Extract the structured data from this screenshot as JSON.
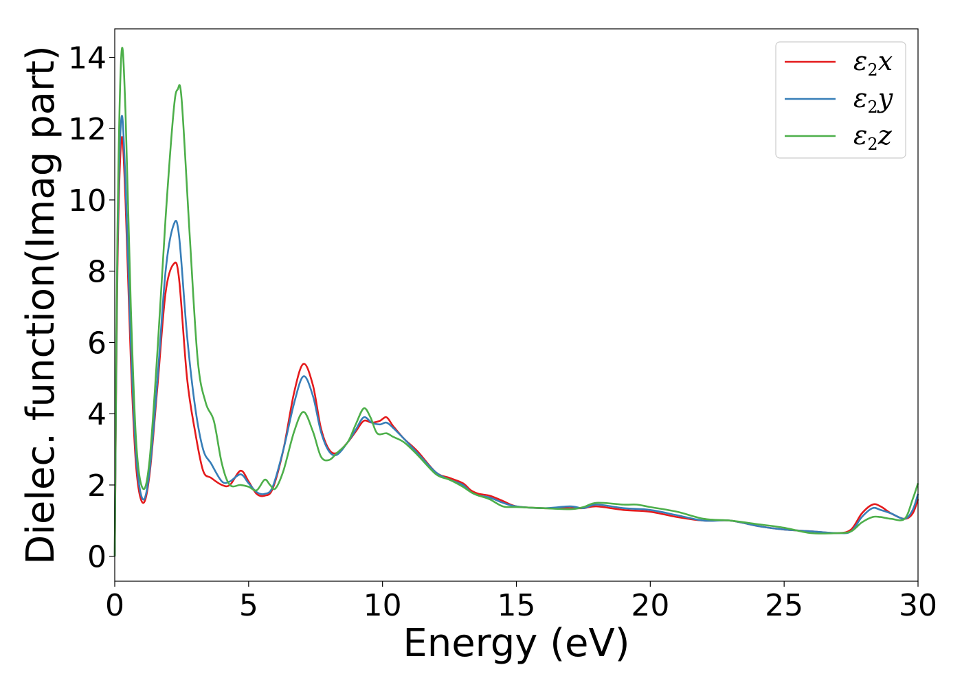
{
  "chart_data": {
    "type": "line",
    "xlabel": "Energy (eV)",
    "ylabel": "Dielec. function(Imag part)",
    "xlim": [
      0,
      30
    ],
    "ylim": [
      -0.7,
      14.8
    ],
    "xticks": [
      "0",
      "5",
      "10",
      "15",
      "20",
      "25",
      "30"
    ],
    "yticks": [
      "0",
      "2",
      "4",
      "6",
      "8",
      "10",
      "12",
      "14"
    ],
    "grid": false,
    "legend_position": "top-right",
    "series": [
      {
        "name": "ε2x",
        "legend_base": "ε",
        "legend_sub": "2",
        "legend_var": "x",
        "color": "#e41a1c",
        "points": [
          [
            0,
            0
          ],
          [
            0.1,
            8.0
          ],
          [
            0.25,
            11.7
          ],
          [
            0.4,
            10.0
          ],
          [
            0.6,
            5.5
          ],
          [
            0.8,
            2.5
          ],
          [
            1.05,
            1.5
          ],
          [
            1.3,
            2.3
          ],
          [
            1.6,
            4.8
          ],
          [
            1.9,
            7.4
          ],
          [
            2.2,
            8.2
          ],
          [
            2.4,
            7.8
          ],
          [
            2.7,
            5.0
          ],
          [
            3.0,
            3.5
          ],
          [
            3.3,
            2.4
          ],
          [
            3.6,
            2.2
          ],
          [
            4.0,
            2.0
          ],
          [
            4.3,
            2.0
          ],
          [
            4.7,
            2.4
          ],
          [
            5.0,
            2.1
          ],
          [
            5.3,
            1.75
          ],
          [
            5.6,
            1.7
          ],
          [
            5.9,
            1.9
          ],
          [
            6.3,
            3.0
          ],
          [
            6.7,
            4.6
          ],
          [
            7.05,
            5.4
          ],
          [
            7.4,
            4.8
          ],
          [
            7.7,
            3.6
          ],
          [
            8.0,
            3.0
          ],
          [
            8.3,
            2.9
          ],
          [
            8.7,
            3.2
          ],
          [
            9.0,
            3.5
          ],
          [
            9.3,
            3.8
          ],
          [
            9.6,
            3.75
          ],
          [
            9.9,
            3.8
          ],
          [
            10.15,
            3.9
          ],
          [
            10.4,
            3.65
          ],
          [
            10.8,
            3.3
          ],
          [
            11.3,
            2.95
          ],
          [
            12.0,
            2.35
          ],
          [
            12.5,
            2.2
          ],
          [
            13.0,
            2.05
          ],
          [
            13.3,
            1.85
          ],
          [
            13.6,
            1.75
          ],
          [
            14.0,
            1.7
          ],
          [
            14.5,
            1.55
          ],
          [
            15.0,
            1.4
          ],
          [
            16.0,
            1.35
          ],
          [
            17.0,
            1.35
          ],
          [
            17.5,
            1.35
          ],
          [
            18.0,
            1.4
          ],
          [
            19.0,
            1.3
          ],
          [
            20.0,
            1.25
          ],
          [
            21.0,
            1.1
          ],
          [
            22.0,
            1.0
          ],
          [
            23.0,
            1.0
          ],
          [
            24.0,
            0.85
          ],
          [
            25.0,
            0.75
          ],
          [
            26.0,
            0.7
          ],
          [
            27.0,
            0.65
          ],
          [
            27.5,
            0.75
          ],
          [
            27.9,
            1.2
          ],
          [
            28.3,
            1.45
          ],
          [
            28.6,
            1.4
          ],
          [
            29.0,
            1.2
          ],
          [
            29.5,
            1.05
          ],
          [
            29.8,
            1.2
          ],
          [
            30.0,
            1.6
          ]
        ]
      },
      {
        "name": "ε2y",
        "legend_base": "ε",
        "legend_sub": "2",
        "legend_var": "y",
        "color": "#377eb8",
        "points": [
          [
            0,
            0
          ],
          [
            0.1,
            8.5
          ],
          [
            0.25,
            12.3
          ],
          [
            0.4,
            10.5
          ],
          [
            0.6,
            6.0
          ],
          [
            0.8,
            2.8
          ],
          [
            1.05,
            1.6
          ],
          [
            1.3,
            2.4
          ],
          [
            1.6,
            5.0
          ],
          [
            1.9,
            8.0
          ],
          [
            2.2,
            9.3
          ],
          [
            2.4,
            9.0
          ],
          [
            2.7,
            6.2
          ],
          [
            3.0,
            4.2
          ],
          [
            3.3,
            3.0
          ],
          [
            3.6,
            2.6
          ],
          [
            4.0,
            2.1
          ],
          [
            4.3,
            2.1
          ],
          [
            4.7,
            2.3
          ],
          [
            5.0,
            2.05
          ],
          [
            5.3,
            1.8
          ],
          [
            5.6,
            1.75
          ],
          [
            5.9,
            1.95
          ],
          [
            6.3,
            3.0
          ],
          [
            6.7,
            4.3
          ],
          [
            7.05,
            5.05
          ],
          [
            7.4,
            4.5
          ],
          [
            7.7,
            3.5
          ],
          [
            8.0,
            2.95
          ],
          [
            8.3,
            2.85
          ],
          [
            8.7,
            3.2
          ],
          [
            9.0,
            3.55
          ],
          [
            9.3,
            3.9
          ],
          [
            9.6,
            3.75
          ],
          [
            9.9,
            3.7
          ],
          [
            10.15,
            3.75
          ],
          [
            10.4,
            3.6
          ],
          [
            10.8,
            3.3
          ],
          [
            11.3,
            2.9
          ],
          [
            12.0,
            2.35
          ],
          [
            12.5,
            2.15
          ],
          [
            13.0,
            2.0
          ],
          [
            13.3,
            1.8
          ],
          [
            13.6,
            1.7
          ],
          [
            14.0,
            1.65
          ],
          [
            14.5,
            1.5
          ],
          [
            15.0,
            1.4
          ],
          [
            16.0,
            1.35
          ],
          [
            17.0,
            1.4
          ],
          [
            17.5,
            1.35
          ],
          [
            18.0,
            1.45
          ],
          [
            19.0,
            1.35
          ],
          [
            20.0,
            1.3
          ],
          [
            21.0,
            1.15
          ],
          [
            22.0,
            1.0
          ],
          [
            23.0,
            1.0
          ],
          [
            24.0,
            0.85
          ],
          [
            25.0,
            0.75
          ],
          [
            26.0,
            0.7
          ],
          [
            27.0,
            0.65
          ],
          [
            27.5,
            0.7
          ],
          [
            27.9,
            1.1
          ],
          [
            28.3,
            1.35
          ],
          [
            28.6,
            1.3
          ],
          [
            29.0,
            1.2
          ],
          [
            29.5,
            1.05
          ],
          [
            29.8,
            1.3
          ],
          [
            30.0,
            1.75
          ]
        ]
      },
      {
        "name": "ε2z",
        "legend_base": "ε",
        "legend_sub": "2",
        "legend_var": "z",
        "color": "#4daf4a",
        "points": [
          [
            0,
            0
          ],
          [
            0.1,
            9.0
          ],
          [
            0.25,
            14.1
          ],
          [
            0.4,
            12.5
          ],
          [
            0.6,
            7.0
          ],
          [
            0.8,
            3.2
          ],
          [
            1.05,
            1.9
          ],
          [
            1.3,
            2.7
          ],
          [
            1.6,
            5.8
          ],
          [
            1.9,
            9.5
          ],
          [
            2.2,
            12.5
          ],
          [
            2.35,
            13.1
          ],
          [
            2.5,
            12.8
          ],
          [
            2.8,
            9.0
          ],
          [
            3.1,
            5.5
          ],
          [
            3.4,
            4.3
          ],
          [
            3.7,
            3.8
          ],
          [
            4.0,
            2.6
          ],
          [
            4.3,
            2.0
          ],
          [
            4.7,
            2.0
          ],
          [
            5.0,
            1.95
          ],
          [
            5.3,
            1.85
          ],
          [
            5.6,
            2.15
          ],
          [
            5.8,
            2.0
          ],
          [
            6.0,
            1.9
          ],
          [
            6.3,
            2.4
          ],
          [
            6.7,
            3.5
          ],
          [
            7.05,
            4.05
          ],
          [
            7.4,
            3.5
          ],
          [
            7.7,
            2.8
          ],
          [
            8.0,
            2.7
          ],
          [
            8.3,
            2.9
          ],
          [
            8.7,
            3.2
          ],
          [
            9.0,
            3.7
          ],
          [
            9.3,
            4.15
          ],
          [
            9.55,
            3.9
          ],
          [
            9.8,
            3.45
          ],
          [
            10.15,
            3.45
          ],
          [
            10.4,
            3.35
          ],
          [
            10.8,
            3.2
          ],
          [
            11.3,
            2.85
          ],
          [
            12.0,
            2.3
          ],
          [
            12.5,
            2.15
          ],
          [
            13.0,
            1.95
          ],
          [
            13.3,
            1.8
          ],
          [
            13.6,
            1.7
          ],
          [
            14.0,
            1.6
          ],
          [
            14.5,
            1.4
          ],
          [
            15.0,
            1.38
          ],
          [
            16.0,
            1.35
          ],
          [
            17.0,
            1.32
          ],
          [
            17.5,
            1.38
          ],
          [
            18.0,
            1.5
          ],
          [
            19.0,
            1.45
          ],
          [
            19.5,
            1.45
          ],
          [
            20.0,
            1.38
          ],
          [
            21.0,
            1.25
          ],
          [
            22.0,
            1.05
          ],
          [
            23.0,
            1.0
          ],
          [
            24.0,
            0.9
          ],
          [
            25.0,
            0.8
          ],
          [
            26.0,
            0.65
          ],
          [
            27.0,
            0.65
          ],
          [
            27.5,
            0.7
          ],
          [
            27.9,
            0.95
          ],
          [
            28.3,
            1.1
          ],
          [
            28.6,
            1.1
          ],
          [
            29.0,
            1.05
          ],
          [
            29.5,
            1.05
          ],
          [
            29.8,
            1.6
          ],
          [
            30.0,
            2.05
          ]
        ]
      }
    ]
  }
}
